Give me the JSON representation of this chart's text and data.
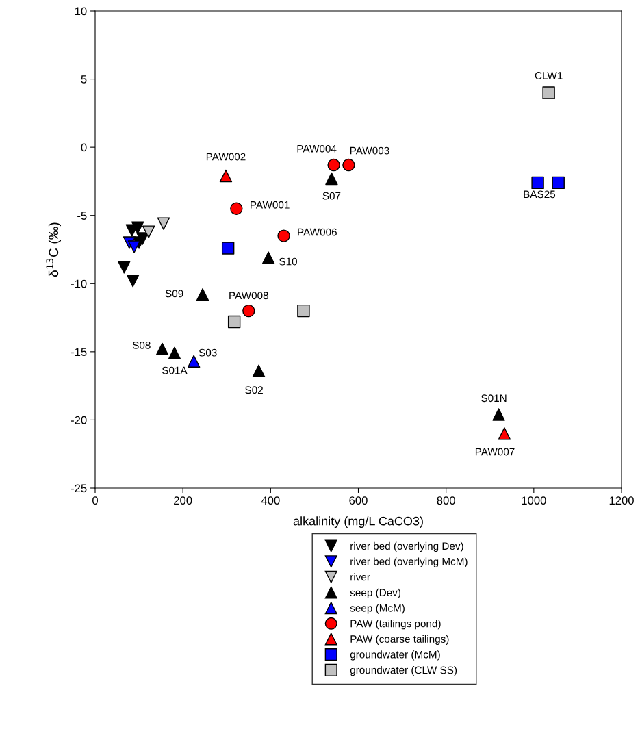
{
  "chart_data": {
    "type": "scatter",
    "xlabel": "alkalinity (mg/L CaCO3)",
    "ylabel": "δ$^{13}$C (‰)",
    "xlim": [
      0,
      1200
    ],
    "xticks": [
      0,
      200,
      400,
      600,
      800,
      1000,
      1200
    ],
    "ylim": [
      -25,
      10
    ],
    "yticks": [
      -25,
      -20,
      -15,
      -10,
      -5,
      0,
      5,
      10
    ],
    "grid": false,
    "legend": "bottom",
    "series": [
      {
        "name": "river bed (overlying Dev)",
        "color": "#000000",
        "marker": "triangle_down",
        "x": [
          66,
          86,
          84,
          97,
          108,
          100
        ],
        "values": [
          -8.8,
          -9.8,
          -6.1,
          -5.9,
          -6.7,
          -7.0
        ]
      },
      {
        "name": "river bed (overlying McM)",
        "color": "#0000ff",
        "marker": "triangle_down",
        "x": [
          78,
          89
        ],
        "values": [
          -7.0,
          -7.3
        ]
      },
      {
        "name": "river",
        "color": "#c0c0c0",
        "marker": "triangle_down",
        "x": [
          156,
          122
        ],
        "values": [
          -5.6,
          -6.2
        ]
      },
      {
        "name": "seep (Dev)",
        "color": "#000000",
        "marker": "triangle",
        "x": [
          245,
          153,
          181,
          373,
          395,
          539,
          920
        ],
        "values": [
          -10.8,
          -14.8,
          -15.1,
          -16.4,
          -8.1,
          -2.3,
          -19.6
        ]
      },
      {
        "name": "seep (McM)",
        "color": "#0000ff",
        "marker": "triangle",
        "x": [
          225
        ],
        "values": [
          -15.7
        ]
      },
      {
        "name": "PAW (tailings pond)",
        "color": "#ff0000",
        "marker": "circle",
        "x": [
          544,
          578,
          322,
          430,
          350
        ],
        "values": [
          -1.3,
          -1.3,
          -4.5,
          -6.5,
          -12.0
        ]
      },
      {
        "name": "PAW (coarse tailings)",
        "color": "#ff0000",
        "marker": "triangle",
        "x": [
          298,
          933
        ],
        "values": [
          -2.1,
          -21.0
        ]
      },
      {
        "name": "groundwater (McM)",
        "color": "#0000ff",
        "marker": "square",
        "x": [
          303,
          1009,
          1056
        ],
        "values": [
          -7.4,
          -2.6,
          -2.6
        ]
      },
      {
        "name": "groundwater (CLW SS)",
        "color": "#c0c0c0",
        "marker": "square",
        "x": [
          1034,
          317,
          475
        ],
        "values": [
          4.0,
          -12.8,
          -12.0
        ]
      }
    ],
    "annotations": [
      {
        "text": "S09",
        "x": 245,
        "y": -10.8
      },
      {
        "text": "S08",
        "x": 153,
        "y": -14.8
      },
      {
        "text": "S01A",
        "x": 181,
        "y": -15.1
      },
      {
        "text": "S02",
        "x": 373,
        "y": -16.4
      },
      {
        "text": "S10",
        "x": 395,
        "y": -8.1
      },
      {
        "text": "S07",
        "x": 539,
        "y": -2.3
      },
      {
        "text": "S01N",
        "x": 920,
        "y": -19.6
      },
      {
        "text": "S03",
        "x": 225,
        "y": -15.7
      },
      {
        "text": "PAW004",
        "x": 544,
        "y": -1.3
      },
      {
        "text": "PAW003",
        "x": 578,
        "y": -1.3
      },
      {
        "text": "PAW001",
        "x": 322,
        "y": -4.5
      },
      {
        "text": "PAW006",
        "x": 430,
        "y": -6.5
      },
      {
        "text": "PAW008",
        "x": 350,
        "y": -12.0
      },
      {
        "text": "PAW002",
        "x": 298,
        "y": -2.1
      },
      {
        "text": "PAW007",
        "x": 933,
        "y": -21.0
      },
      {
        "text": "BAS25",
        "x": 1056,
        "y": -2.6
      },
      {
        "text": "CLW1",
        "x": 1034,
        "y": 4.0
      }
    ]
  }
}
